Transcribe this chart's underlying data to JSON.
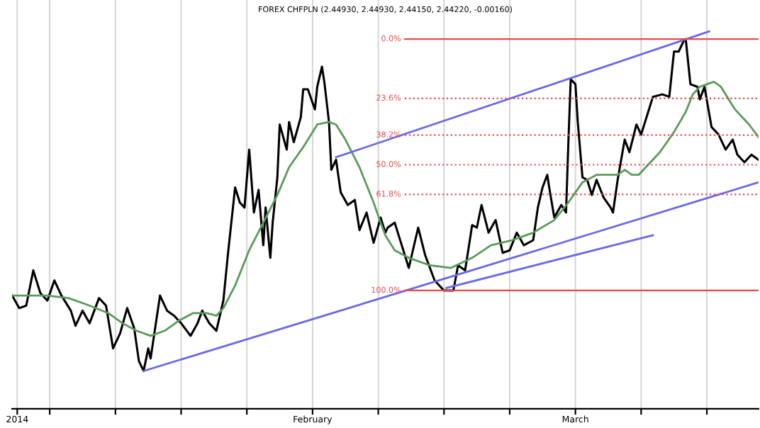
{
  "chart_data": {
    "type": "line",
    "title": "FOREX CHFPLN (2.44930, 2.44930, 2.44150, 2.44220, -0.00160)",
    "xlim": [
      "2014-01-02",
      "2014-03-22T12:00"
    ],
    "ylim": [
      147,
      -15.5
    ],
    "xticks": [
      {
        "value": "2014-01-02T13:00",
        "label": "2014"
      },
      {
        "value": "2014-01-06",
        "label": null
      },
      {
        "value": "2014-01-13",
        "label": null
      },
      {
        "value": "2014-01-20",
        "label": null
      },
      {
        "value": "2014-01-27",
        "label": null
      },
      {
        "value": "2014-02-03",
        "label": "February"
      },
      {
        "value": "2014-02-10",
        "label": null
      },
      {
        "value": "2014-02-17",
        "label": null
      },
      {
        "value": "2014-02-24",
        "label": null
      },
      {
        "value": "2014-03-03",
        "label": "March"
      },
      {
        "value": "2014-03-10",
        "label": null
      },
      {
        "value": "2014-03-17",
        "label": null
      }
    ],
    "tick_labels": "x",
    "grid": "x",
    "legend": false,
    "series": [
      {
        "color": "#000000",
        "x": [
          "2014-01-02",
          "2014-01-02T18:00",
          "2014-01-03T12:00",
          "2014-01-04T06:00",
          "2014-01-05",
          "2014-01-05T18:00",
          "2014-01-06T12:00",
          "2014-01-07T06:00",
          "2014-01-08T06:00",
          "2014-01-08T18:00",
          "2014-01-09T12:00",
          "2014-01-10T06:00",
          "2014-01-11T06:00",
          "2014-01-12",
          "2014-01-12T18:00",
          "2014-01-13T12:00",
          "2014-01-14T06:00",
          "2014-01-15",
          "2014-01-15T12:00",
          "2014-01-16",
          "2014-01-16T12:00",
          "2014-01-16T18:00",
          "2014-01-17T18:00",
          "2014-01-18T12:00",
          "2014-01-19T06:00",
          "2014-01-20",
          "2014-01-21",
          "2014-01-21T18:00",
          "2014-01-22T06:00",
          "2014-01-23",
          "2014-01-23T18:00",
          "2014-01-24T12:00",
          "2014-01-25",
          "2014-01-25T18:00",
          "2014-01-26T06:00",
          "2014-01-26T18:00",
          "2014-01-27T06:00",
          "2014-01-27T18:00",
          "2014-01-28T06:00",
          "2014-01-28T18:00",
          "2014-01-29",
          "2014-01-29T12:00",
          "2014-01-29T18:00",
          "2014-01-30T06:00",
          "2014-01-30T12:00",
          "2014-01-31T06:00",
          "2014-01-31T12:00",
          "2014-02-01",
          "2014-02-01T18:00",
          "2014-02-02",
          "2014-02-02T12:00",
          "2014-02-03T06:00",
          "2014-02-03T12:00",
          "2014-02-04",
          "2014-02-04T06:00",
          "2014-02-04T18:00",
          "2014-02-05",
          "2014-02-05T12:00",
          "2014-02-06",
          "2014-02-06T18:00",
          "2014-02-07T12:00",
          "2014-02-08",
          "2014-02-08T18:00",
          "2014-02-09T12:00",
          "2014-02-10T06:00",
          "2014-02-10T18:00",
          "2014-02-11",
          "2014-02-11T18:00",
          "2014-02-12T12:00",
          "2014-02-13T06:00",
          "2014-02-14T06:00",
          "2014-02-15",
          "2014-02-16",
          "2014-02-17",
          "2014-02-18",
          "2014-02-18T12:00",
          "2014-02-19T06:00",
          "2014-02-20",
          "2014-02-20T12:00",
          "2014-02-21",
          "2014-02-21T18:00",
          "2014-02-22T12:00",
          "2014-02-23T06:00",
          "2014-02-24",
          "2014-02-24T18:00",
          "2014-02-25T12:00",
          "2014-02-26T12:00",
          "2014-02-27",
          "2014-02-27T12:00",
          "2014-02-28",
          "2014-02-28T06:00",
          "2014-02-28T18:00",
          "2014-03-01T12:00",
          "2014-03-02",
          "2014-03-02T06:00",
          "2014-03-02T12:00",
          "2014-03-03",
          "2014-03-03T06:00",
          "2014-03-03T18:00",
          "2014-03-04T06:00",
          "2014-03-04T18:00",
          "2014-03-05T06:00",
          "2014-03-06",
          "2014-03-06T18:00",
          "2014-03-07",
          "2014-03-07T12:00",
          "2014-03-08T06:00",
          "2014-03-08T18:00",
          "2014-03-09T12:00",
          "2014-03-10",
          "2014-03-10T18:00",
          "2014-03-11T06:00",
          "2014-03-12T06:00",
          "2014-03-13",
          "2014-03-13T12:00",
          "2014-03-14",
          "2014-03-14T12:00",
          "2014-03-14T18:00",
          "2014-03-15T06:00",
          "2014-03-16",
          "2014-03-16T06:00",
          "2014-03-16T18:00",
          "2014-03-17T12:00",
          "2014-03-18T06:00",
          "2014-03-19",
          "2014-03-19T18:00",
          "2014-03-20T06:00",
          "2014-03-21",
          "2014-03-21T18:00",
          "2014-03-22T12:00"
        ],
        "values": [
          102,
          107,
          106,
          92,
          101,
          104,
          96,
          102,
          108,
          114,
          108,
          113,
          103,
          106,
          123,
          117,
          107,
          115,
          128,
          132,
          123,
          127,
          102,
          108,
          110,
          113,
          118,
          113,
          108,
          113,
          116,
          104,
          85,
          59,
          65,
          67,
          44,
          69,
          60,
          82,
          67,
          87,
          73,
          55,
          34,
          44,
          33,
          41,
          31,
          20,
          20,
          28,
          19,
          11,
          17,
          33,
          52,
          48,
          61,
          66,
          64,
          76,
          69,
          81,
          71,
          77,
          75,
          73,
          82,
          91,
          75,
          86,
          96,
          100,
          100,
          90,
          92,
          74,
          75,
          66,
          77,
          72,
          85,
          84,
          77,
          82,
          80,
          67,
          59,
          54,
          60,
          71,
          66,
          69,
          41,
          16,
          18,
          33,
          55,
          56,
          62,
          56,
          63,
          67,
          69,
          56,
          40,
          45,
          34,
          38,
          29,
          23,
          22,
          23,
          5,
          5,
          1,
          0,
          18,
          19,
          24,
          19,
          35,
          38,
          44,
          40,
          46,
          49,
          46,
          48
        ]
      },
      {
        "color": "#5a9a5a",
        "x": [
          "2014-01-02",
          "2014-01-04T06:00",
          "2014-01-05T18:00",
          "2014-01-08",
          "2014-01-10T06:00",
          "2014-01-12T06:00",
          "2014-01-13T18:00",
          "2014-01-15T06:00",
          "2014-01-16T18:00",
          "2014-01-18T06:00",
          "2014-01-19T18:00",
          "2014-01-21T06:00",
          "2014-01-22T18:00",
          "2014-01-23T18:00",
          "2014-01-24T12:00",
          "2014-01-25T18:00",
          "2014-01-27T06:00",
          "2014-01-28T18:00",
          "2014-01-30T06:00",
          "2014-01-31T12:00",
          "2014-02-02",
          "2014-02-03T12:00",
          "2014-02-04T18:00",
          "2014-02-05T12:00",
          "2014-02-06T12:00",
          "2014-02-08",
          "2014-02-09T12:00",
          "2014-02-10T06:00",
          "2014-02-10T18:00",
          "2014-02-11T18:00",
          "2014-02-13T06:00",
          "2014-02-15T12:00",
          "2014-02-17T18:00",
          "2014-02-20",
          "2014-02-22",
          "2014-02-24T06:00",
          "2014-02-26T12:00",
          "2014-02-28T18:00",
          "2014-03-02T06:00",
          "2014-03-03T18:00",
          "2014-03-05T06:00",
          "2014-03-06T18:00",
          "2014-03-07T12:00",
          "2014-03-08T06:00",
          "2014-03-09",
          "2014-03-09T18:00",
          "2014-03-10T12:00",
          "2014-03-12",
          "2014-03-13T12:00",
          "2014-03-14T18:00",
          "2014-03-15T12:00",
          "2014-03-16T06:00",
          "2014-03-17",
          "2014-03-17T18:00",
          "2014-03-18T12:00",
          "2014-03-20",
          "2014-03-21T12:00",
          "2014-03-22T12:00"
        ],
        "values": [
          102,
          102,
          102,
          103,
          106,
          109,
          113,
          116,
          118,
          116,
          112,
          109,
          109,
          110,
          107,
          98,
          84,
          73,
          62,
          51,
          43,
          34,
          33,
          34,
          40,
          51,
          65,
          73,
          78,
          84,
          87,
          90,
          91,
          87,
          82,
          80,
          77,
          72,
          65,
          57,
          54,
          54,
          54,
          52,
          54,
          54,
          51,
          45,
          37,
          29,
          22,
          19,
          18,
          17,
          19,
          28,
          34,
          39
        ]
      },
      {
        "color": "#6a6ae6",
        "x": [
          "2014-01-16",
          "2014-03-22T12:00"
        ],
        "values": [
          132,
          57
        ]
      },
      {
        "color": "#6a6ae6",
        "x": [
          "2014-02-17T06:00",
          "2014-03-11T06:00"
        ],
        "values": [
          99,
          78
        ]
      },
      {
        "color": "#6a6ae6",
        "x": [
          "2014-02-05T12:00",
          "2014-03-17T06:00"
        ],
        "values": [
          47,
          -3
        ]
      }
    ],
    "ref_lines": [
      {
        "axis": "y",
        "value": 0,
        "label": "0.0%",
        "color": "#e84a4a",
        "line_style": "solid"
      },
      {
        "axis": "y",
        "value": 23.6,
        "label": "23.6%",
        "color": "#e84a4a",
        "line_style": "dotted"
      },
      {
        "axis": "y",
        "value": 38.2,
        "label": "38.2%",
        "color": "#e84a4a",
        "line_style": "dotted"
      },
      {
        "axis": "y",
        "value": 50,
        "label": "50.0%",
        "color": "#e84a4a",
        "line_style": "dotted"
      },
      {
        "axis": "y",
        "value": 61.8,
        "label": "61.8%",
        "color": "#e84a4a",
        "line_style": "dotted"
      },
      {
        "axis": "y",
        "value": 100,
        "label": "100.0%",
        "color": "#e84a4a",
        "line_style": "solid"
      }
    ]
  }
}
